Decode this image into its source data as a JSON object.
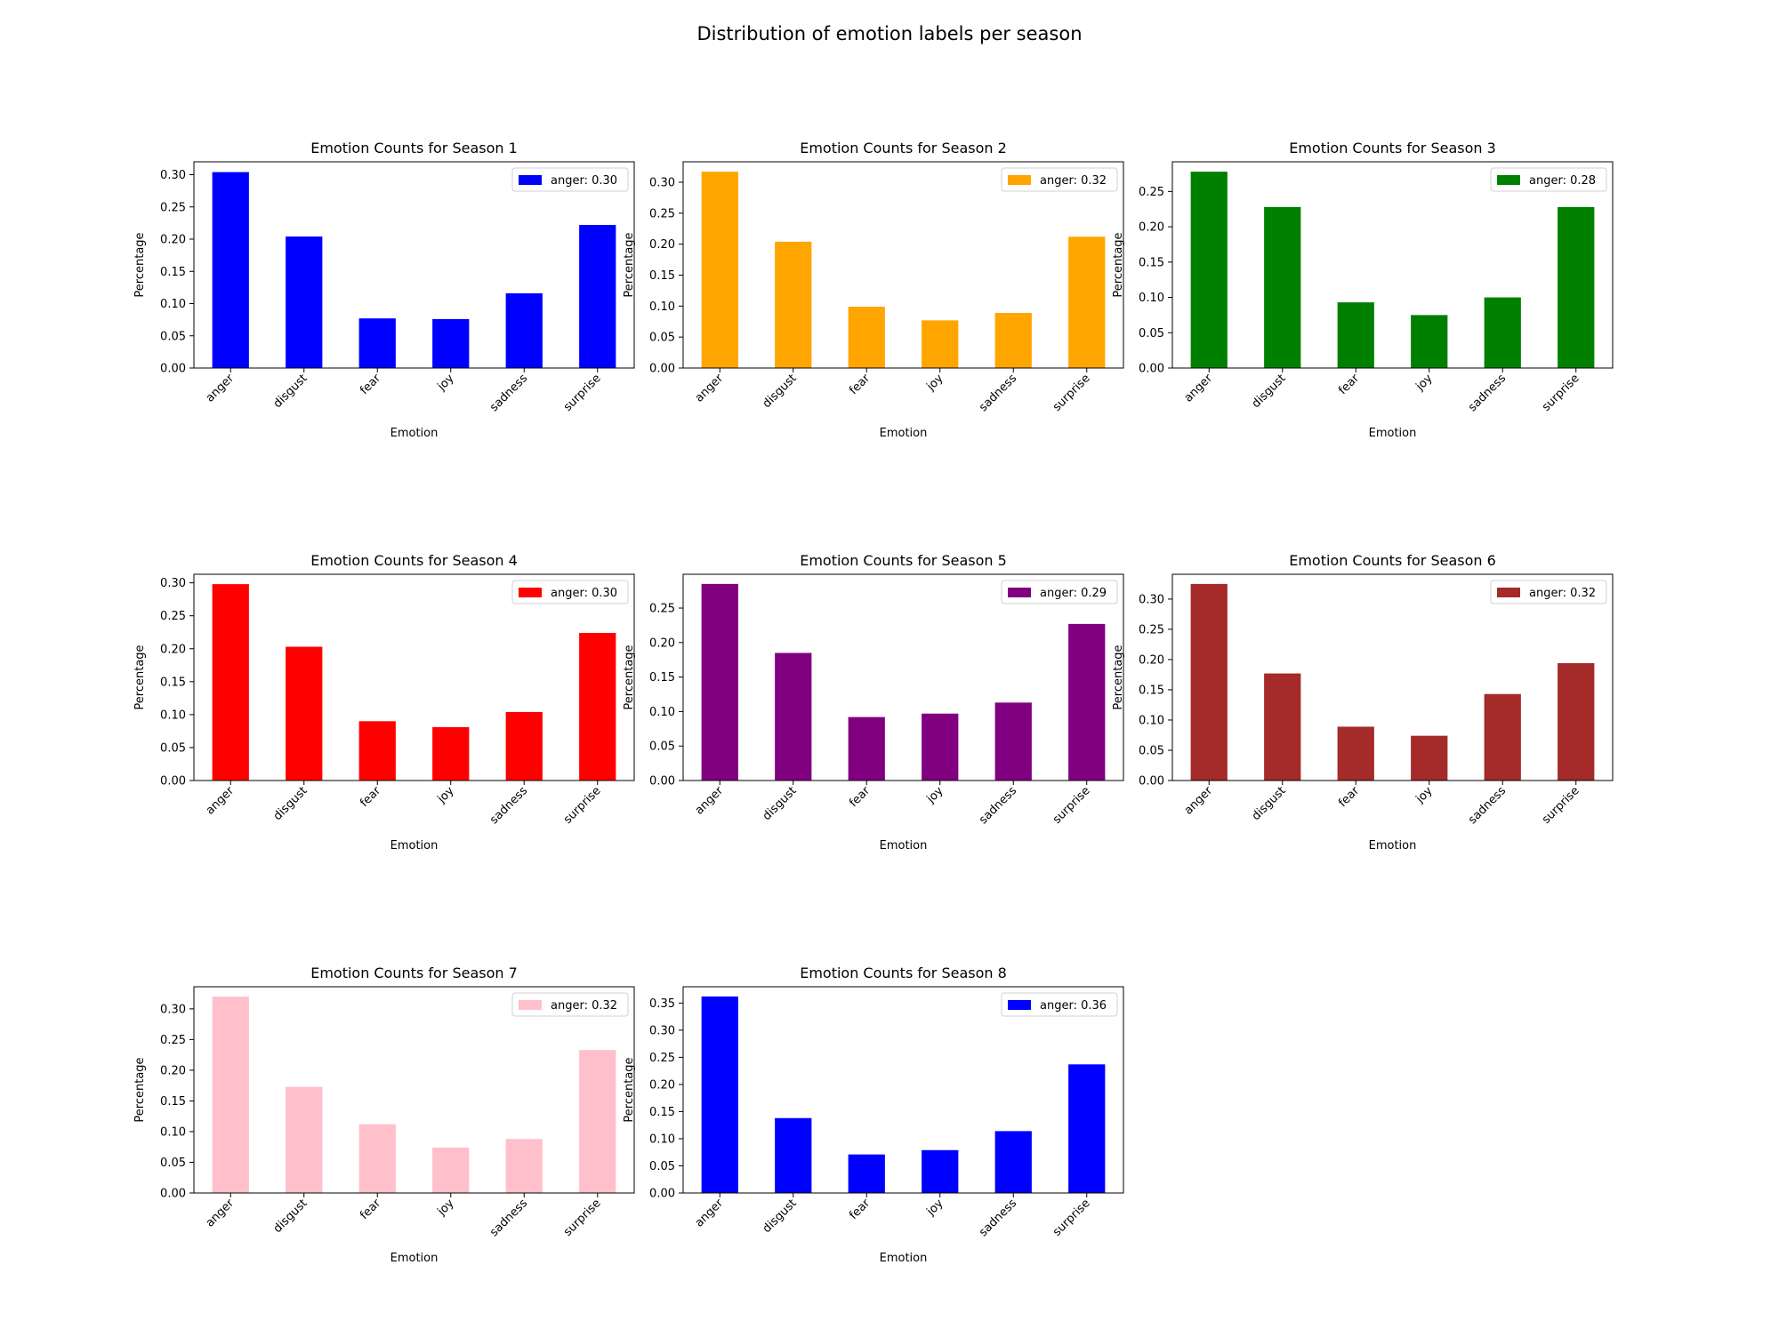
{
  "figure": {
    "title": "Distribution of emotion labels per season"
  },
  "chart_data": [
    {
      "type": "bar",
      "title": "Emotion Counts for Season 1",
      "xlabel": "Emotion",
      "ylabel": "Percentage",
      "categories": [
        "anger",
        "disgust",
        "fear",
        "joy",
        "sadness",
        "surprise"
      ],
      "series": [
        {
          "name": "anger: 0.30",
          "values": [
            0.304,
            0.204,
            0.077,
            0.076,
            0.116,
            0.222
          ]
        }
      ],
      "color": "#0000ff",
      "ylim": [
        0,
        0.32
      ],
      "yticks": [
        "0.00",
        "0.05",
        "0.10",
        "0.15",
        "0.20",
        "0.25",
        "0.30"
      ],
      "legend": "top-right",
      "grid": false
    },
    {
      "type": "bar",
      "title": "Emotion Counts for Season 2",
      "xlabel": "Emotion",
      "ylabel": "Percentage",
      "categories": [
        "anger",
        "disgust",
        "fear",
        "joy",
        "sadness",
        "surprise"
      ],
      "series": [
        {
          "name": "anger: 0.32",
          "values": [
            0.317,
            0.204,
            0.099,
            0.077,
            0.089,
            0.212
          ]
        }
      ],
      "color": "#ffa500",
      "ylim": [
        0,
        0.333
      ],
      "yticks": [
        "0.00",
        "0.05",
        "0.10",
        "0.15",
        "0.20",
        "0.25",
        "0.30"
      ],
      "legend": "top-right",
      "grid": false
    },
    {
      "type": "bar",
      "title": "Emotion Counts for Season 3",
      "xlabel": "Emotion",
      "ylabel": "Percentage",
      "categories": [
        "anger",
        "disgust",
        "fear",
        "joy",
        "sadness",
        "surprise"
      ],
      "series": [
        {
          "name": "anger: 0.28",
          "values": [
            0.278,
            0.228,
            0.093,
            0.075,
            0.1,
            0.228
          ]
        }
      ],
      "color": "#008000",
      "ylim": [
        0,
        0.292
      ],
      "yticks": [
        "0.00",
        "0.05",
        "0.10",
        "0.15",
        "0.20",
        "0.25"
      ],
      "legend": "top-right",
      "grid": false
    },
    {
      "type": "bar",
      "title": "Emotion Counts for Season 4",
      "xlabel": "Emotion",
      "ylabel": "Percentage",
      "categories": [
        "anger",
        "disgust",
        "fear",
        "joy",
        "sadness",
        "surprise"
      ],
      "series": [
        {
          "name": "anger: 0.30",
          "values": [
            0.298,
            0.203,
            0.09,
            0.081,
            0.104,
            0.224
          ]
        }
      ],
      "color": "#ff0000",
      "ylim": [
        0,
        0.313
      ],
      "yticks": [
        "0.00",
        "0.05",
        "0.10",
        "0.15",
        "0.20",
        "0.25",
        "0.30"
      ],
      "legend": "top-right",
      "grid": false
    },
    {
      "type": "bar",
      "title": "Emotion Counts for Season 5",
      "xlabel": "Emotion",
      "ylabel": "Percentage",
      "categories": [
        "anger",
        "disgust",
        "fear",
        "joy",
        "sadness",
        "surprise"
      ],
      "series": [
        {
          "name": "anger: 0.29",
          "values": [
            0.285,
            0.185,
            0.092,
            0.097,
            0.113,
            0.227
          ]
        }
      ],
      "color": "#800080",
      "ylim": [
        0,
        0.299
      ],
      "yticks": [
        "0.00",
        "0.05",
        "0.10",
        "0.15",
        "0.20",
        "0.25"
      ],
      "legend": "top-right",
      "grid": false
    },
    {
      "type": "bar",
      "title": "Emotion Counts for Season 6",
      "xlabel": "Emotion",
      "ylabel": "Percentage",
      "categories": [
        "anger",
        "disgust",
        "fear",
        "joy",
        "sadness",
        "surprise"
      ],
      "series": [
        {
          "name": "anger: 0.32",
          "values": [
            0.325,
            0.177,
            0.089,
            0.074,
            0.143,
            0.194
          ]
        }
      ],
      "color": "#a52a2a",
      "ylim": [
        0,
        0.341
      ],
      "yticks": [
        "0.00",
        "0.05",
        "0.10",
        "0.15",
        "0.20",
        "0.25",
        "0.30"
      ],
      "legend": "top-right",
      "grid": false
    },
    {
      "type": "bar",
      "title": "Emotion Counts for Season 7",
      "xlabel": "Emotion",
      "ylabel": "Percentage",
      "categories": [
        "anger",
        "disgust",
        "fear",
        "joy",
        "sadness",
        "surprise"
      ],
      "series": [
        {
          "name": "anger: 0.32",
          "values": [
            0.32,
            0.173,
            0.112,
            0.074,
            0.088,
            0.233
          ]
        }
      ],
      "color": "#ffc0cb",
      "ylim": [
        0,
        0.336
      ],
      "yticks": [
        "0.00",
        "0.05",
        "0.10",
        "0.15",
        "0.20",
        "0.25",
        "0.30"
      ],
      "legend": "top-right",
      "grid": false
    },
    {
      "type": "bar",
      "title": "Emotion Counts for Season 8",
      "xlabel": "Emotion",
      "ylabel": "Percentage",
      "categories": [
        "anger",
        "disgust",
        "fear",
        "joy",
        "sadness",
        "surprise"
      ],
      "series": [
        {
          "name": "anger: 0.36",
          "values": [
            0.362,
            0.138,
            0.071,
            0.079,
            0.114,
            0.237
          ]
        }
      ],
      "color": "#0000ff",
      "ylim": [
        0,
        0.38
      ],
      "yticks": [
        "0.00",
        "0.05",
        "0.10",
        "0.15",
        "0.20",
        "0.25",
        "0.30",
        "0.35"
      ],
      "legend": "top-right",
      "grid": false
    }
  ]
}
